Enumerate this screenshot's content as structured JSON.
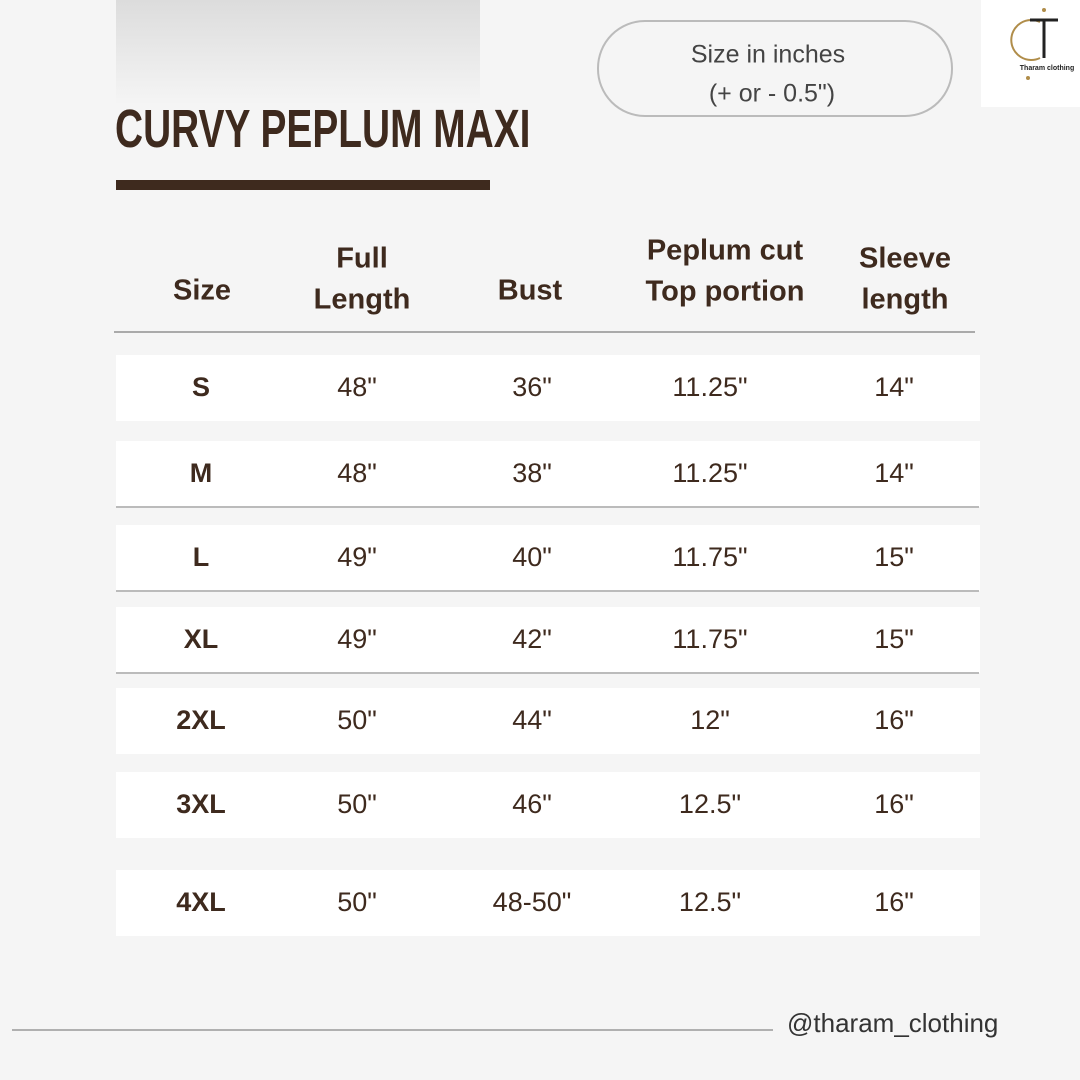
{
  "header": {
    "title": "CURVY PEPLUM MAXI",
    "note_lines": [
      "Size in inches",
      "(+ or - 0.5\")"
    ],
    "brand": "Tharam clothing"
  },
  "table": {
    "columns": [
      [
        "Size"
      ],
      [
        "Full",
        "Length"
      ],
      [
        "Bust"
      ],
      [
        "Peplum cut",
        "Top portion"
      ],
      [
        "Sleeve",
        "length"
      ]
    ],
    "rows": [
      [
        "S",
        "48\"",
        "36\"",
        "11.25\"",
        "14\""
      ],
      [
        "M",
        "48\"",
        "38\"",
        "11.25\"",
        "14\""
      ],
      [
        "L",
        "49\"",
        "40\"",
        "11.75\"",
        "15\""
      ],
      [
        "XL",
        "49\"",
        "42\"",
        "11.75\"",
        "15\""
      ],
      [
        "2XL",
        "50\"",
        "44\"",
        "12\"",
        "16\""
      ],
      [
        "3XL",
        "50\"",
        "46\"",
        "12.5\"",
        "16\""
      ],
      [
        "4XL",
        "50\"",
        "48-50\"",
        "12.5\"",
        "16\""
      ]
    ]
  },
  "footer": {
    "handle": "@tharam_clothing"
  }
}
